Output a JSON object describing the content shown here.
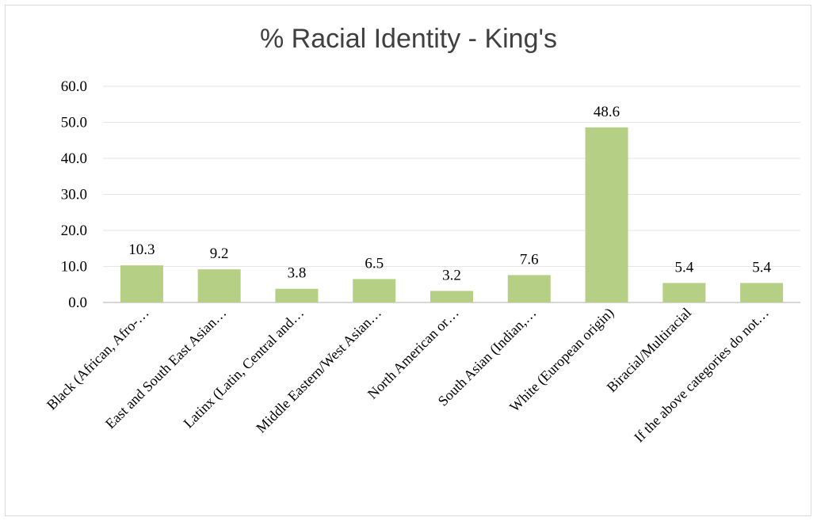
{
  "chart_data": {
    "type": "bar",
    "title": "% Racial Identity - King's",
    "xlabel": "",
    "ylabel": "",
    "ylim": [
      0,
      60
    ],
    "yticks": [
      "0.0",
      "10.0",
      "20.0",
      "30.0",
      "40.0",
      "50.0",
      "60.0"
    ],
    "categories": [
      "Black (African, Afro-…",
      "East and South East Asian…",
      "Latinx (Latin, Central and…",
      "Middle Eastern/West Asian…",
      "North American or…",
      "South Asian (Indian,…",
      "White (European origin)",
      "Biracial/Multiracial",
      "If the above categories do not…"
    ],
    "values": [
      10.3,
      9.2,
      3.8,
      6.5,
      3.2,
      7.6,
      48.6,
      5.4,
      5.4
    ],
    "value_labels": [
      "10.3",
      "9.2",
      "3.8",
      "6.5",
      "3.2",
      "7.6",
      "48.6",
      "5.4",
      "5.4"
    ],
    "grid": true,
    "legend": "none",
    "colors": {
      "bar": "#b5cf85",
      "grid": "#e6e6e6",
      "axis": "#bfbfbf"
    }
  }
}
